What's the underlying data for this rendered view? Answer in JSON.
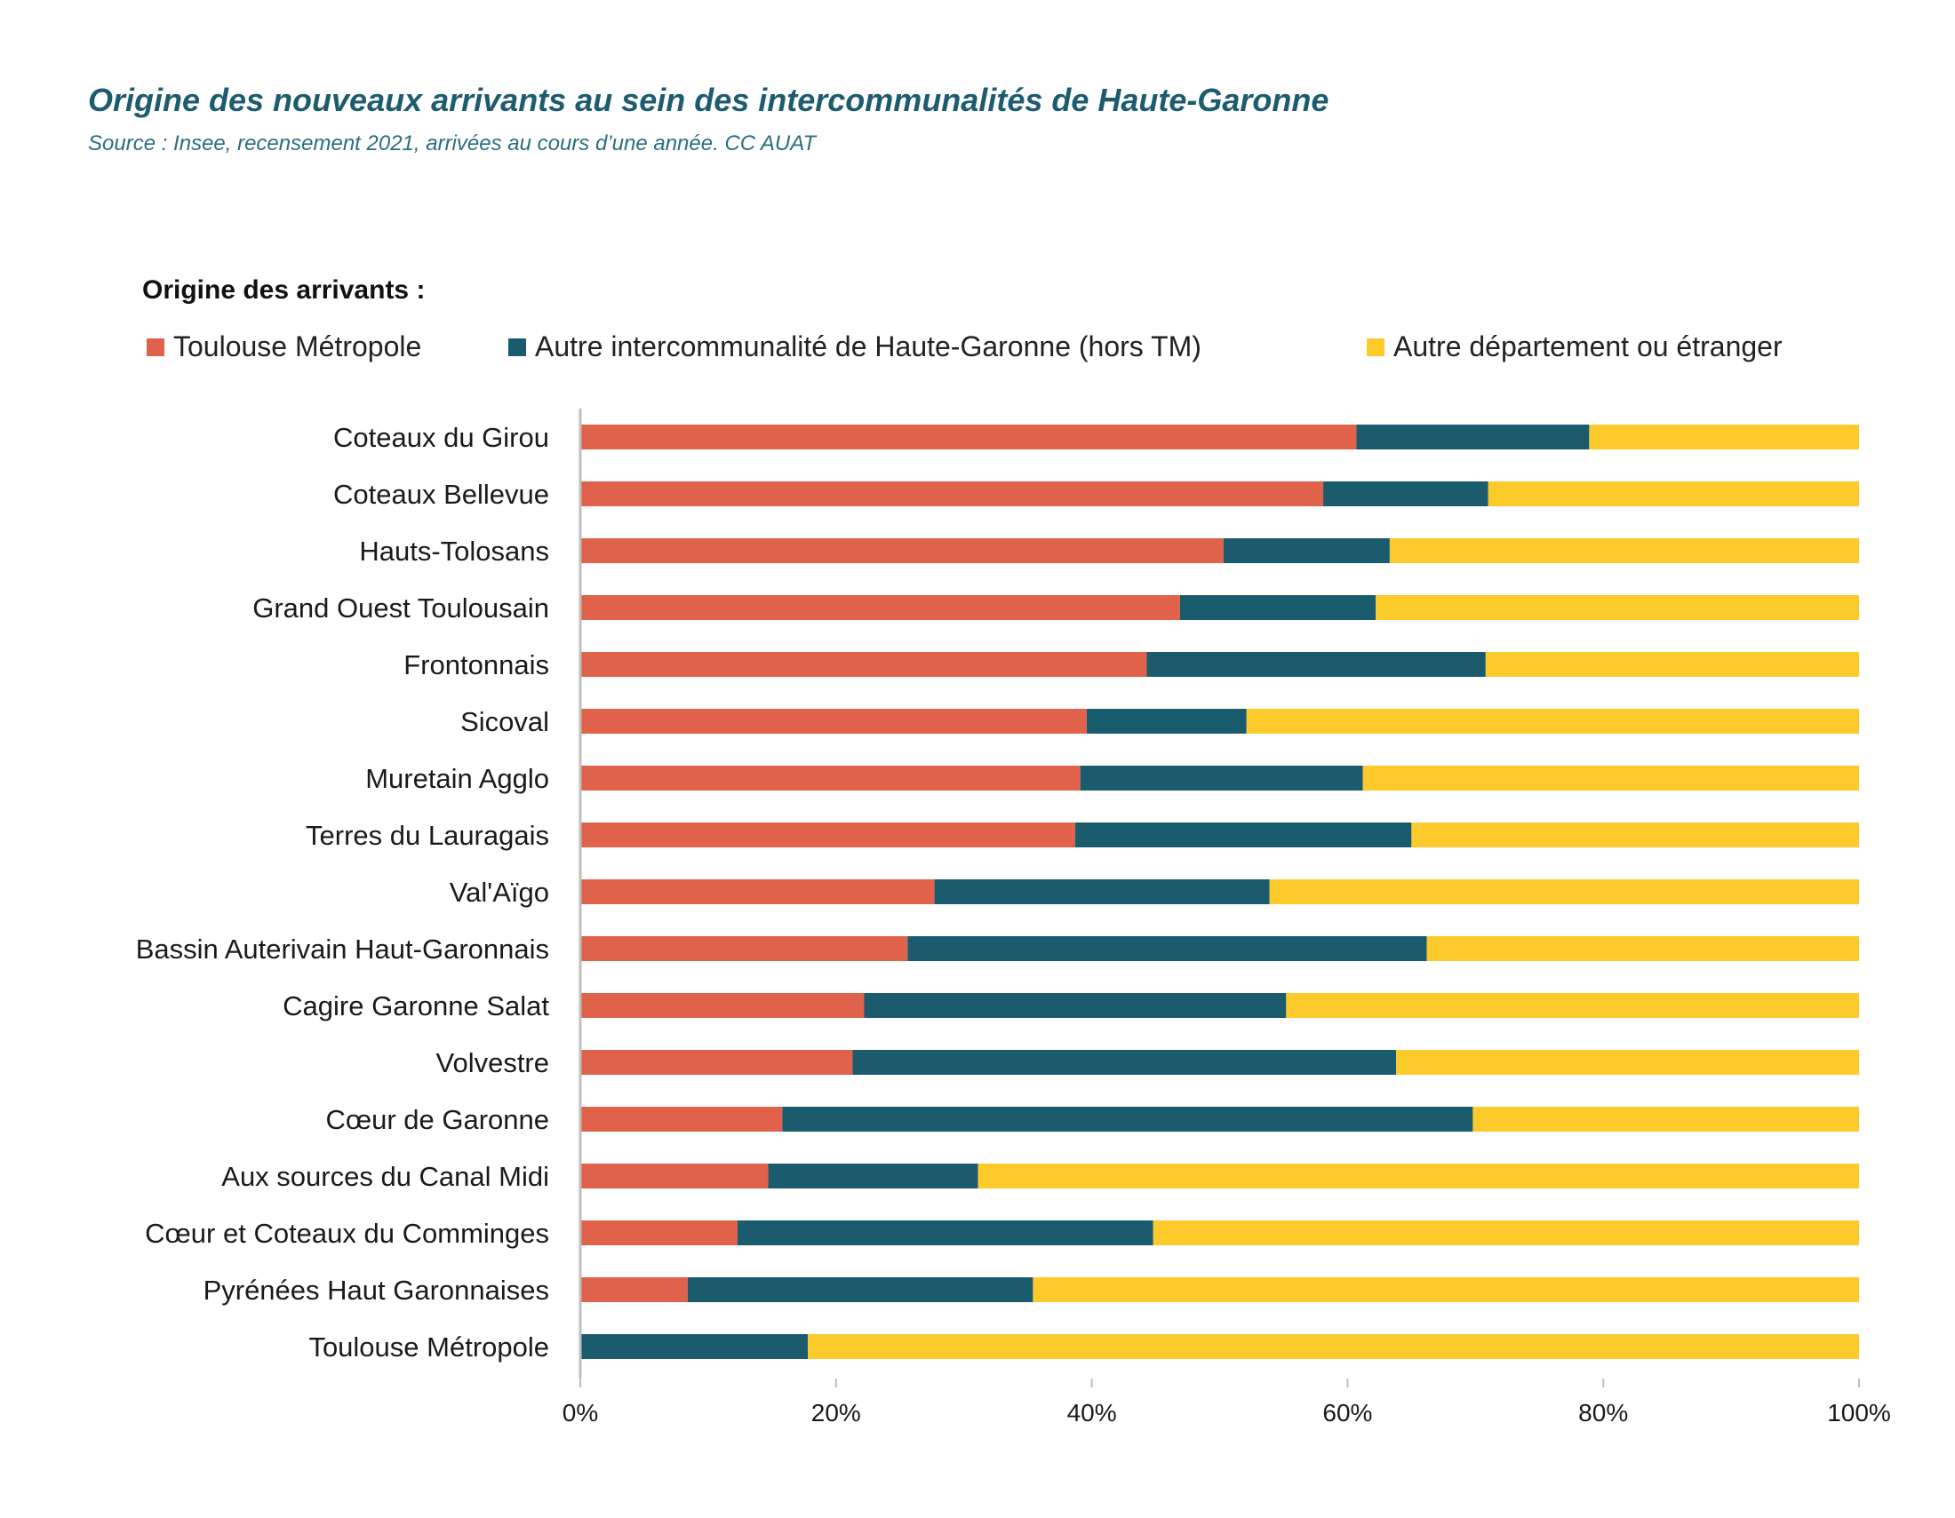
{
  "header": {
    "title": "Origine des nouveaux arrivants au sein des intercommunalités de Haute-Garonne",
    "subtitle": "Source : Insee, recensement 2021, arrivées au cours d’une année. CC AUAT"
  },
  "legend": {
    "title": "Origine des arrivants :",
    "items": [
      {
        "label": "Toulouse Métropole",
        "color": "#e0624a"
      },
      {
        "label": "Autre intercommunalité de Haute-Garonne (hors TM)",
        "color": "#1a5b6e"
      },
      {
        "label": "Autre département ou étranger",
        "color": "#fcca2b"
      }
    ]
  },
  "chart_data": {
    "type": "bar",
    "orientation": "horizontal",
    "stacked": true,
    "normalized": true,
    "title": "Origine des nouveaux arrivants au sein des intercommunalités de Haute-Garonne",
    "xlabel": "",
    "ylabel": "",
    "xlim": [
      0,
      100
    ],
    "xticks": [
      "0%",
      "20%",
      "40%",
      "60%",
      "80%",
      "100%"
    ],
    "grid": false,
    "legend_position": "top",
    "categories": [
      "Coteaux du Girou",
      "Coteaux Bellevue",
      "Hauts-Tolosans",
      "Grand Ouest Toulousain",
      "Frontonnais",
      "Sicoval",
      "Muretain Agglo",
      "Terres du Lauragais",
      "Val'Aïgo",
      "Bassin Auterivain Haut-Garonnais",
      "Cagire Garonne Salat",
      "Volvestre",
      "Cœur de Garonne",
      "Aux sources du Canal Midi",
      "Cœur et Coteaux du Comminges",
      "Pyrénées Haut Garonnaises",
      "Toulouse Métropole"
    ],
    "series": [
      {
        "name": "Toulouse Métropole",
        "color": "#e0624a",
        "values": [
          60.7,
          58.1,
          50.3,
          46.9,
          44.3,
          39.6,
          39.1,
          38.7,
          27.7,
          25.6,
          22.2,
          21.3,
          15.8,
          14.7,
          12.3,
          8.4,
          0
        ]
      },
      {
        "name": "Autre intercommunalité de Haute-Garonne (hors TM)",
        "color": "#1a5b6e",
        "values": [
          18.2,
          12.9,
          13.0,
          15.3,
          26.5,
          12.5,
          22.1,
          26.3,
          26.2,
          40.6,
          33.0,
          42.5,
          54.0,
          16.4,
          32.5,
          27.0,
          17.8
        ]
      },
      {
        "name": "Autre département ou étranger",
        "color": "#fcca2b",
        "values": [
          21.1,
          29.0,
          36.7,
          37.8,
          29.2,
          47.9,
          38.8,
          35.0,
          46.1,
          33.8,
          44.8,
          36.2,
          30.2,
          68.9,
          55.2,
          64.6,
          82.2
        ]
      }
    ]
  }
}
